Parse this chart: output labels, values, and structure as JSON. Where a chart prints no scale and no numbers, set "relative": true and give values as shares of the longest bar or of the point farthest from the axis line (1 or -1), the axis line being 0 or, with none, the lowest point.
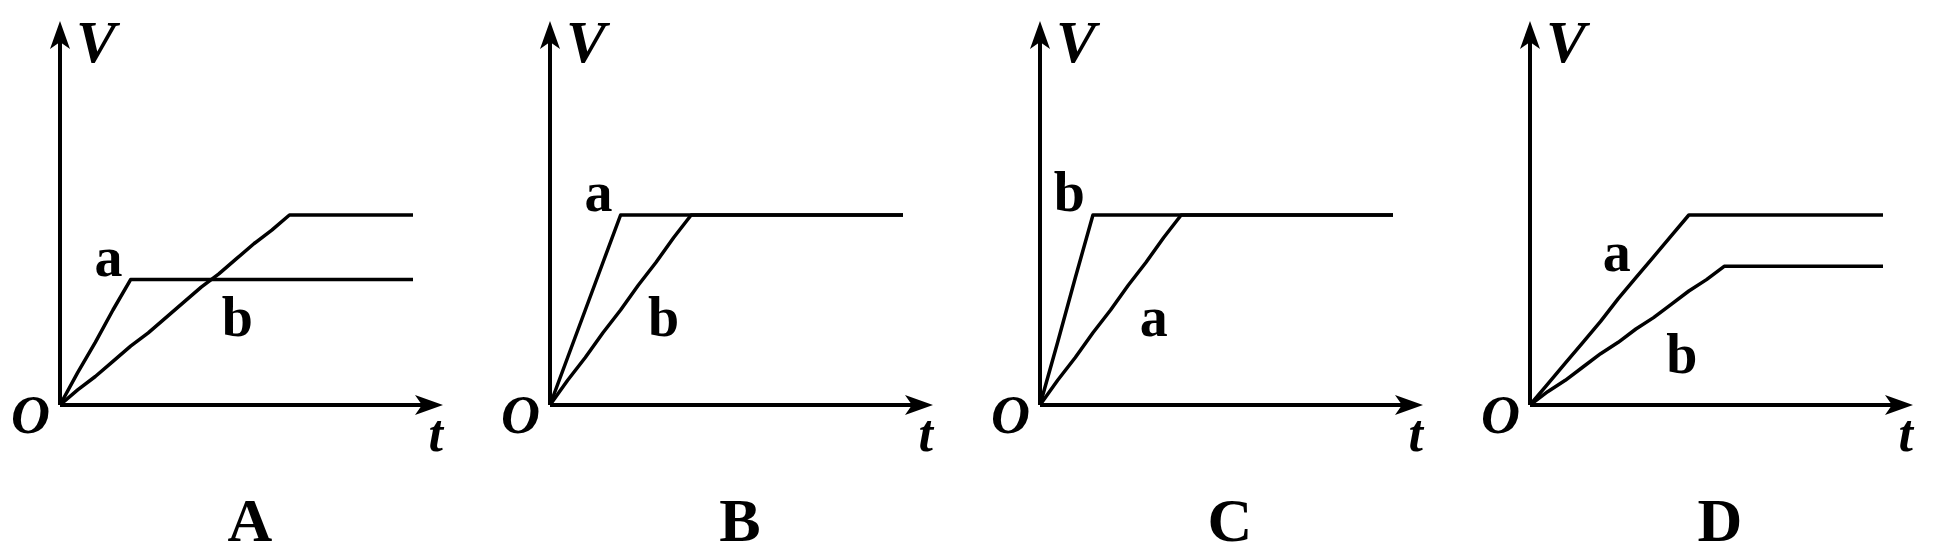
{
  "chart_data": [
    {
      "type": "line",
      "title": "A",
      "xlabel": "t",
      "ylabel": "V",
      "relative": true,
      "annotations": [
        "O"
      ],
      "categories": [
        null,
        null,
        null,
        null,
        null,
        null,
        null,
        null,
        null,
        null,
        null,
        null,
        null,
        null,
        null,
        null,
        null,
        null,
        null,
        null,
        null
      ],
      "series": [
        {
          "name": "a",
          "color": "#000000",
          "values": [
            0,
            0.17,
            0.33,
            0.5,
            0.66,
            0.66,
            0.66,
            0.66,
            0.66,
            0.66,
            0.66,
            0.66,
            0.66,
            0.66,
            0.66,
            0.66,
            0.66,
            0.66,
            0.66,
            0.66,
            0.66
          ]
        },
        {
          "name": "b",
          "color": "#000000",
          "values": [
            0,
            0.08,
            0.15,
            0.23,
            0.31,
            0.38,
            0.46,
            0.54,
            0.62,
            0.69,
            0.77,
            0.85,
            0.92,
            1,
            1,
            1,
            1,
            1,
            1,
            1,
            1
          ]
        }
      ]
    },
    {
      "type": "line",
      "title": "B",
      "xlabel": "t",
      "ylabel": "V",
      "relative": true,
      "annotations": [
        "O"
      ],
      "categories": [
        null,
        null,
        null,
        null,
        null,
        null,
        null,
        null,
        null,
        null,
        null,
        null,
        null,
        null,
        null,
        null,
        null,
        null,
        null,
        null,
        null
      ],
      "series": [
        {
          "name": "a",
          "color": "#000000",
          "values": [
            0,
            0.25,
            0.5,
            0.75,
            1,
            1,
            1,
            1,
            1,
            1,
            1,
            1,
            1,
            1,
            1,
            1,
            1,
            1,
            1,
            1,
            1
          ]
        },
        {
          "name": "b",
          "color": "#000000",
          "values": [
            0,
            0.13,
            0.25,
            0.38,
            0.5,
            0.63,
            0.75,
            0.88,
            1,
            1,
            1,
            1,
            1,
            1,
            1,
            1,
            1,
            1,
            1,
            1,
            1
          ]
        }
      ]
    },
    {
      "type": "line",
      "title": "C",
      "xlabel": "t",
      "ylabel": "V",
      "relative": true,
      "annotations": [
        "O"
      ],
      "categories": [
        null,
        null,
        null,
        null,
        null,
        null,
        null,
        null,
        null,
        null,
        null,
        null,
        null,
        null,
        null,
        null,
        null,
        null,
        null,
        null,
        null
      ],
      "series": [
        {
          "name": "a",
          "color": "#000000",
          "values": [
            0,
            0.13,
            0.25,
            0.38,
            0.5,
            0.63,
            0.75,
            0.88,
            1,
            1,
            1,
            1,
            1,
            1,
            1,
            1,
            1,
            1,
            1,
            1,
            1
          ]
        },
        {
          "name": "b",
          "color": "#000000",
          "values": [
            0,
            0.33,
            0.67,
            1,
            1,
            1,
            1,
            1,
            1,
            1,
            1,
            1,
            1,
            1,
            1,
            1,
            1,
            1,
            1,
            1,
            1
          ]
        }
      ]
    },
    {
      "type": "line",
      "title": "D",
      "xlabel": "t",
      "ylabel": "V",
      "relative": true,
      "annotations": [
        "O"
      ],
      "categories": [
        null,
        null,
        null,
        null,
        null,
        null,
        null,
        null,
        null,
        null,
        null,
        null,
        null,
        null,
        null,
        null,
        null,
        null,
        null,
        null,
        null
      ],
      "series": [
        {
          "name": "a",
          "color": "#000000",
          "values": [
            0,
            0.11,
            0.22,
            0.33,
            0.44,
            0.56,
            0.67,
            0.78,
            0.89,
            1,
            1,
            1,
            1,
            1,
            1,
            1,
            1,
            1,
            1,
            1,
            1
          ]
        },
        {
          "name": "b",
          "color": "#000000",
          "values": [
            0,
            0.07,
            0.13,
            0.2,
            0.27,
            0.33,
            0.4,
            0.46,
            0.53,
            0.6,
            0.66,
            0.73,
            0.73,
            0.73,
            0.73,
            0.73,
            0.73,
            0.73,
            0.73,
            0.73,
            0.73
          ]
        }
      ]
    }
  ]
}
